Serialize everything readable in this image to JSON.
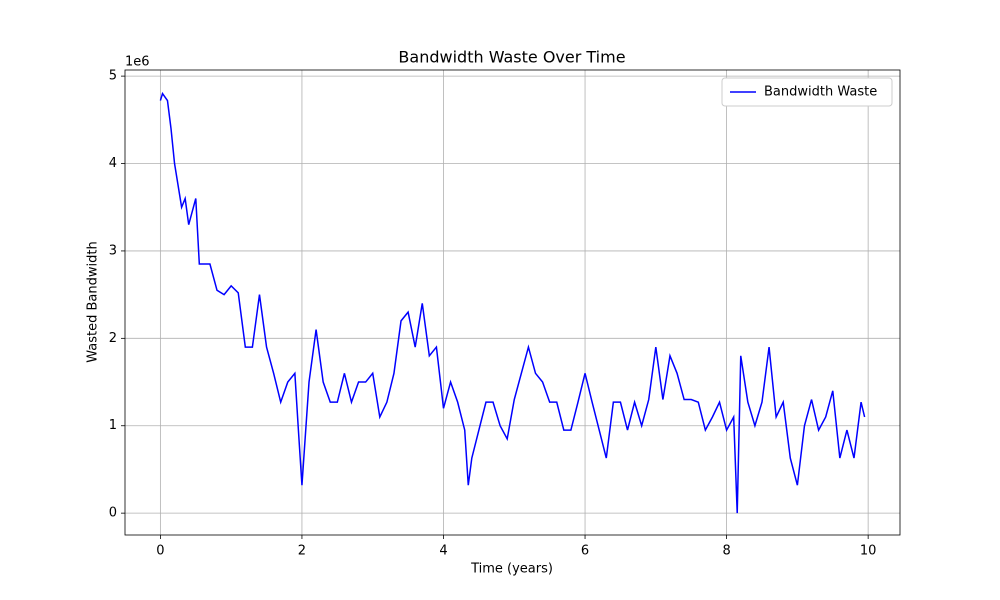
{
  "chart_data": {
    "type": "line",
    "title": "Bandwidth Waste Over Time",
    "xlabel": "Time (years)",
    "ylabel": "Wasted Bandwidth",
    "y_offset_label": "1e6",
    "x": [
      0.0,
      0.03,
      0.1,
      0.15,
      0.2,
      0.3,
      0.35,
      0.4,
      0.5,
      0.55,
      0.6,
      0.7,
      0.8,
      0.9,
      1.0,
      1.1,
      1.2,
      1.3,
      1.4,
      1.5,
      1.6,
      1.7,
      1.8,
      1.9,
      1.95,
      2.0,
      2.1,
      2.2,
      2.3,
      2.4,
      2.5,
      2.6,
      2.7,
      2.8,
      2.9,
      3.0,
      3.1,
      3.2,
      3.3,
      3.4,
      3.5,
      3.6,
      3.7,
      3.8,
      3.9,
      4.0,
      4.1,
      4.2,
      4.3,
      4.35,
      4.4,
      4.5,
      4.6,
      4.7,
      4.8,
      4.9,
      5.0,
      5.1,
      5.2,
      5.3,
      5.4,
      5.5,
      5.6,
      5.7,
      5.8,
      5.9,
      6.0,
      6.1,
      6.2,
      6.3,
      6.4,
      6.5,
      6.6,
      6.7,
      6.8,
      6.9,
      7.0,
      7.1,
      7.2,
      7.3,
      7.4,
      7.5,
      7.6,
      7.7,
      7.8,
      7.9,
      8.0,
      8.1,
      8.15,
      8.2,
      8.3,
      8.4,
      8.5,
      8.6,
      8.7,
      8.8,
      8.9,
      9.0,
      9.1,
      9.2,
      9.3,
      9.4,
      9.5,
      9.6,
      9.7,
      9.8,
      9.9,
      9.95
    ],
    "series": [
      {
        "name": "Bandwidth Waste",
        "color": "#0000ff",
        "values": [
          4.72,
          4.8,
          4.72,
          4.4,
          4.0,
          3.5,
          3.6,
          3.3,
          3.6,
          2.85,
          2.85,
          2.85,
          2.55,
          2.5,
          2.6,
          2.52,
          1.9,
          1.9,
          2.5,
          1.9,
          1.6,
          1.27,
          1.5,
          1.6,
          0.95,
          0.32,
          1.5,
          2.1,
          1.5,
          1.27,
          1.27,
          1.6,
          1.27,
          1.5,
          1.5,
          1.6,
          1.1,
          1.27,
          1.6,
          2.2,
          2.3,
          1.9,
          2.4,
          1.8,
          1.9,
          1.2,
          1.5,
          1.27,
          0.95,
          0.32,
          0.63,
          0.95,
          1.27,
          1.27,
          1.0,
          0.85,
          1.3,
          1.6,
          1.9,
          1.6,
          1.5,
          1.27,
          1.27,
          0.95,
          0.95,
          1.27,
          1.6,
          1.27,
          0.95,
          0.63,
          1.27,
          1.27,
          0.95,
          1.27,
          1.0,
          1.3,
          1.9,
          1.3,
          1.8,
          1.6,
          1.3,
          1.3,
          1.27,
          0.95,
          1.1,
          1.27,
          0.95,
          1.1,
          0.0,
          1.8,
          1.27,
          1.0,
          1.27,
          1.9,
          1.1,
          1.27,
          0.63,
          0.32,
          1.0,
          1.3,
          0.95,
          1.1,
          1.4,
          0.63,
          0.95,
          0.63,
          1.27,
          1.1
        ]
      }
    ],
    "xlim": [
      -0.5,
      10.45
    ],
    "ylim": [
      -0.25,
      5.07
    ],
    "xticks": [
      0,
      2,
      4,
      6,
      8,
      10
    ],
    "yticks": [
      0,
      1,
      2,
      3,
      4,
      5
    ],
    "grid": true,
    "legend": "upper right"
  }
}
